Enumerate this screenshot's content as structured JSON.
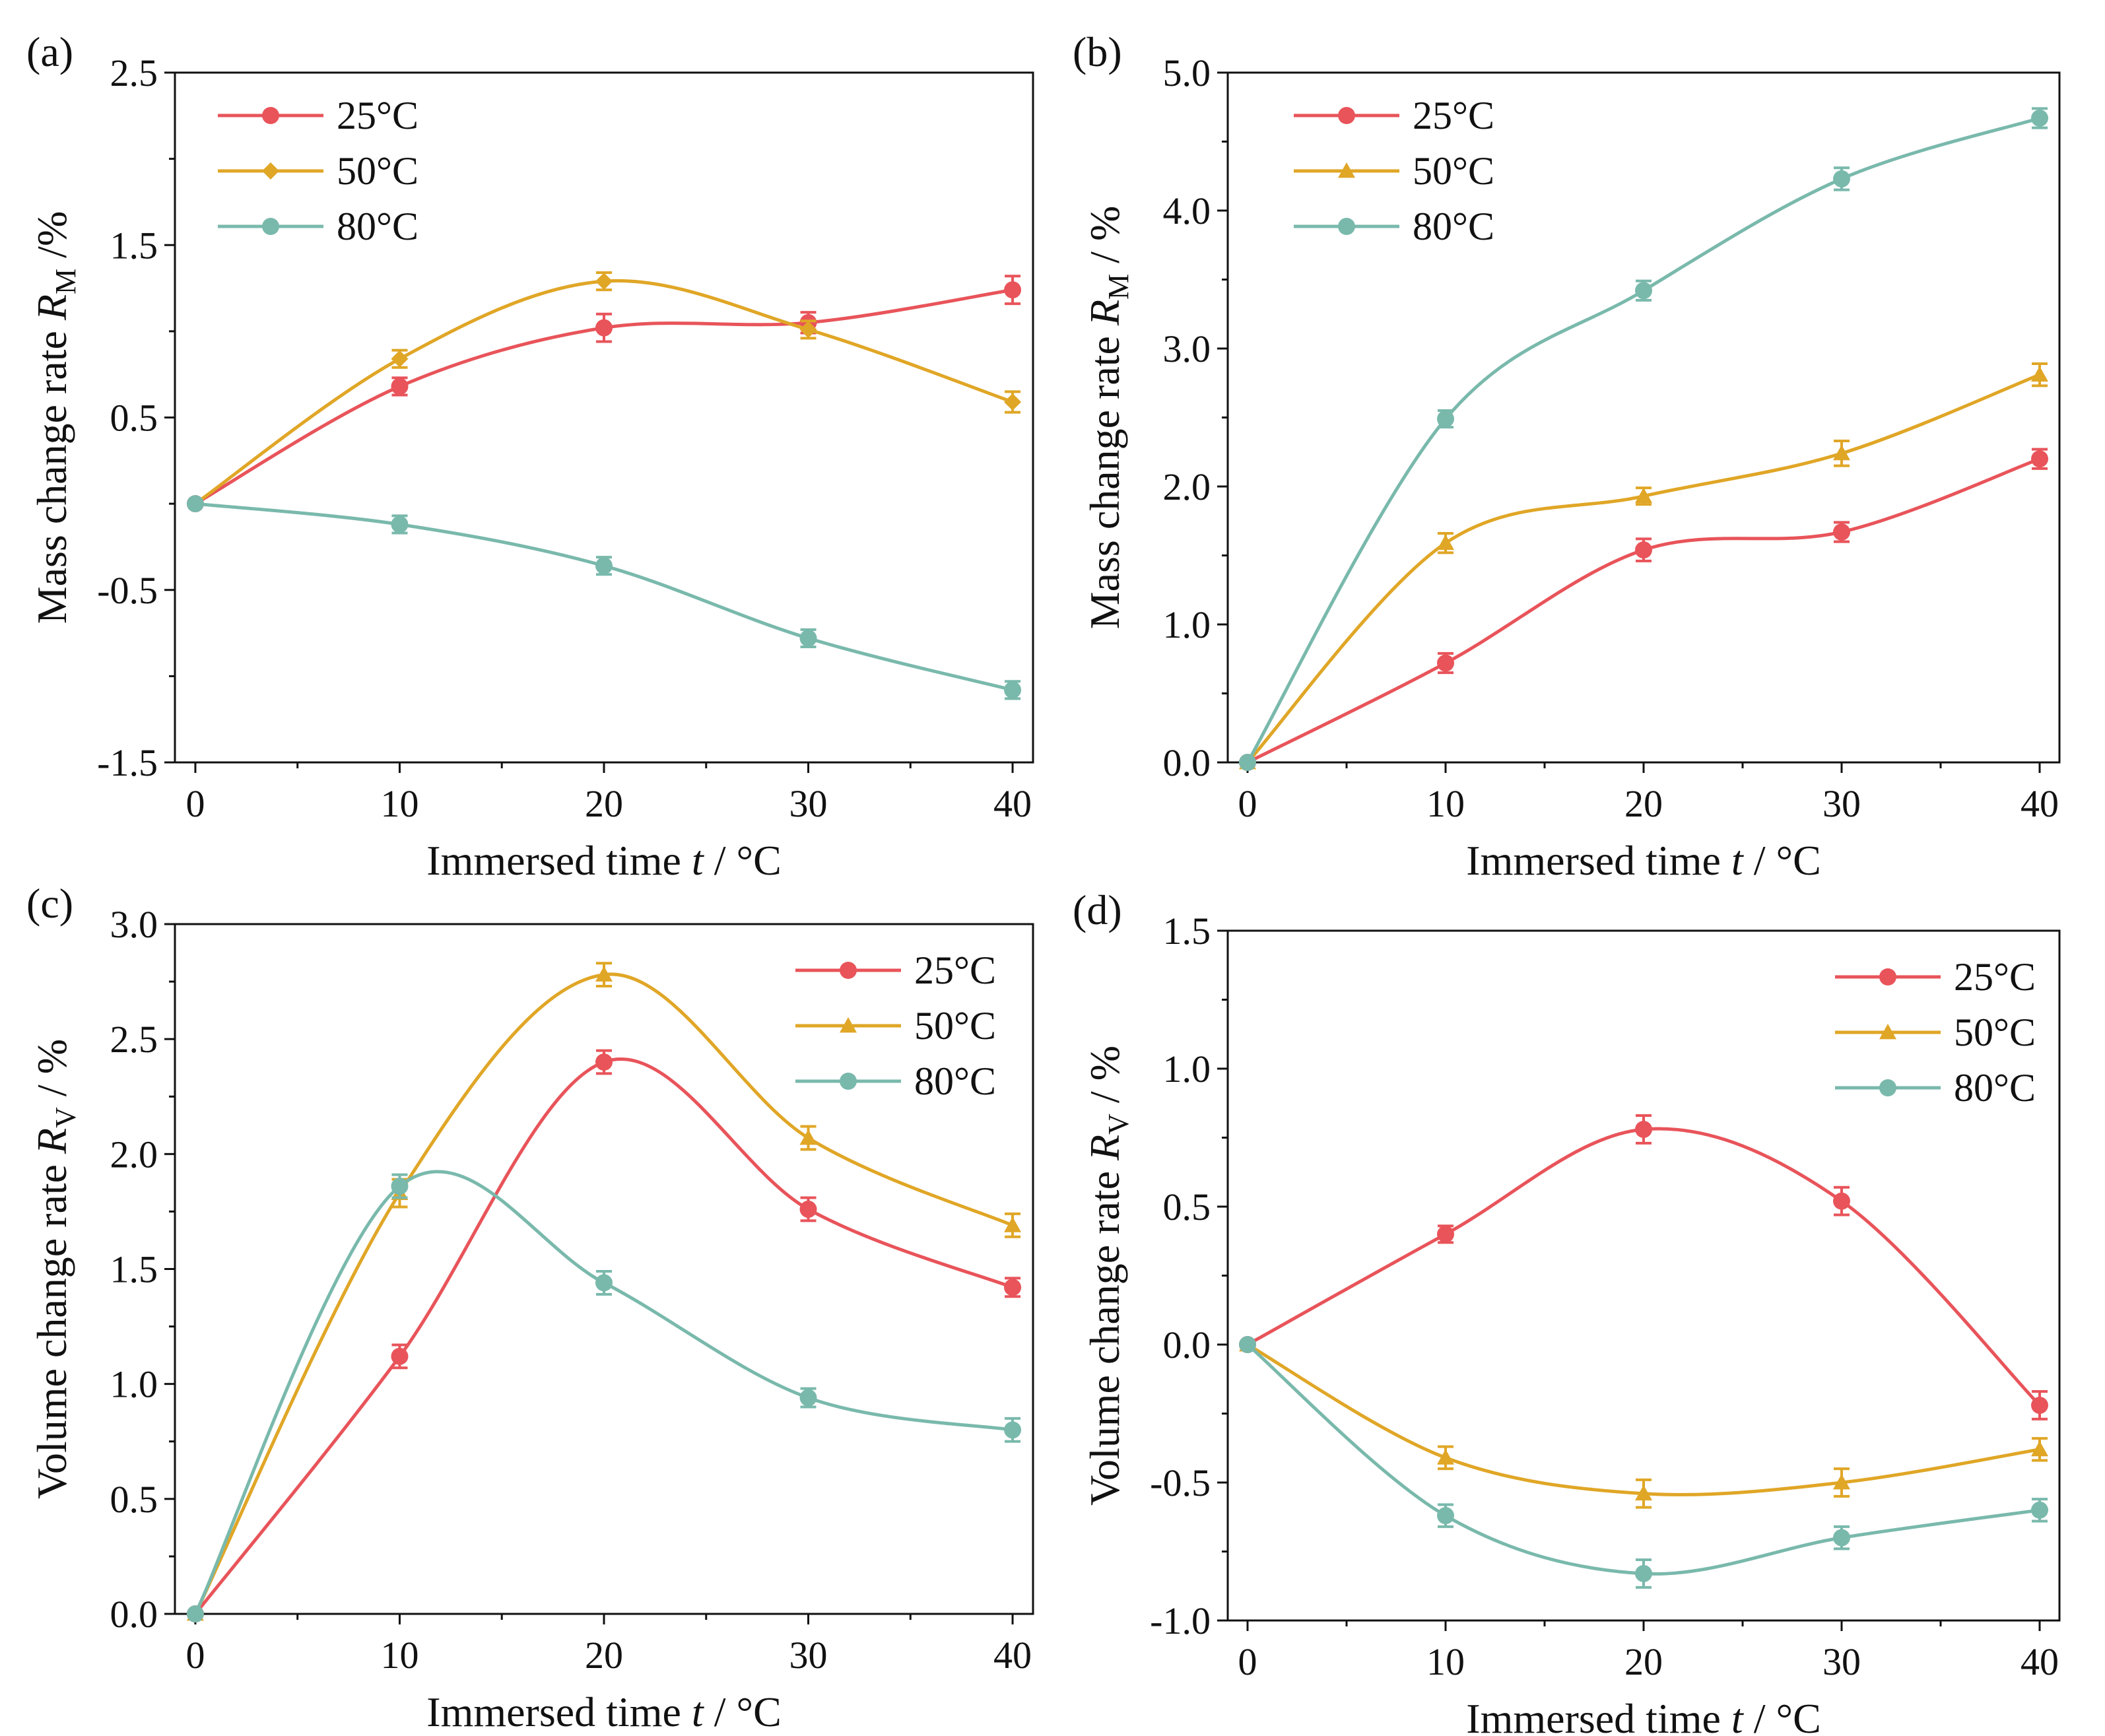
{
  "figure": {
    "panel_count": 4
  },
  "chart_data": [
    {
      "panel": "(a)",
      "type": "line",
      "x": [
        0,
        10,
        20,
        30,
        40
      ],
      "xlim": [
        -1,
        41
      ],
      "xticks": [
        "0",
        "10",
        "20",
        "30",
        "40"
      ],
      "ylim": [
        -1.5,
        2.5
      ],
      "yticks": [
        "-1.5",
        "-0.5",
        "0.5",
        "1.5",
        "2.5"
      ],
      "ytick_values": [
        -1.5,
        -0.5,
        0.5,
        1.5,
        2.5
      ],
      "xlabel": "Immersed time",
      "xlabel_var": "t",
      "xlabel_unit": " / °C",
      "ylabel": "Mass change rate",
      "ylabel_var": "R",
      "ylabel_sub": "M",
      "ylabel_unit": " /%",
      "legend_position": "top-left",
      "series": [
        {
          "name": "25°C",
          "marker": "circle",
          "color": "#e8545a",
          "values": [
            0,
            0.68,
            1.02,
            1.05,
            1.24
          ],
          "errors": [
            0,
            0.05,
            0.08,
            0.06,
            0.08
          ]
        },
        {
          "name": "50°C",
          "marker": "diamond",
          "color": "#e0a626",
          "values": [
            0,
            0.84,
            1.29,
            1.01,
            0.59
          ],
          "errors": [
            0,
            0.05,
            0.05,
            0.05,
            0.06
          ]
        },
        {
          "name": "80°C",
          "marker": "circle",
          "color": "#79b9ac",
          "values": [
            0,
            -0.12,
            -0.36,
            -0.78,
            -1.08
          ],
          "errors": [
            0,
            0.05,
            0.05,
            0.05,
            0.05
          ]
        }
      ]
    },
    {
      "panel": "(b)",
      "type": "line",
      "x": [
        0,
        10,
        20,
        30,
        40
      ],
      "xlim": [
        -1,
        41
      ],
      "xticks": [
        "0",
        "10",
        "20",
        "30",
        "40"
      ],
      "ylim": [
        0,
        5
      ],
      "yticks": [
        "0.0",
        "1.0",
        "2.0",
        "3.0",
        "4.0",
        "5.0"
      ],
      "ytick_values": [
        0,
        1,
        2,
        3,
        4,
        5
      ],
      "xlabel": "Immersed time",
      "xlabel_var": "t",
      "xlabel_unit": " / °C",
      "ylabel": "Mass change rate",
      "ylabel_var": "R",
      "ylabel_sub": "M",
      "ylabel_unit": " / %",
      "legend_position": "top-left",
      "series": [
        {
          "name": "25°C",
          "marker": "circle",
          "color": "#e8545a",
          "values": [
            0,
            0.72,
            1.54,
            1.67,
            2.2
          ],
          "errors": [
            0,
            0.07,
            0.08,
            0.07,
            0.07
          ]
        },
        {
          "name": "50°C",
          "marker": "triangle",
          "color": "#e0a626",
          "values": [
            0,
            1.59,
            1.93,
            2.24,
            2.81
          ],
          "errors": [
            0,
            0.07,
            0.06,
            0.09,
            0.08
          ]
        },
        {
          "name": "80°C",
          "marker": "circle",
          "color": "#79b9ac",
          "values": [
            0,
            2.49,
            3.42,
            4.23,
            4.67
          ],
          "errors": [
            0,
            0.06,
            0.07,
            0.08,
            0.07
          ]
        }
      ]
    },
    {
      "panel": "(c)",
      "type": "line",
      "x": [
        0,
        10,
        20,
        30,
        40
      ],
      "xlim": [
        -1,
        41
      ],
      "xticks": [
        "0",
        "10",
        "20",
        "30",
        "40"
      ],
      "ylim": [
        0,
        3
      ],
      "yticks": [
        "0.0",
        "0.5",
        "1.0",
        "1.5",
        "2.0",
        "2.5",
        "3.0"
      ],
      "ytick_values": [
        0,
        0.5,
        1,
        1.5,
        2,
        2.5,
        3
      ],
      "xlabel": "Immersed time",
      "xlabel_var": "t",
      "xlabel_unit": " / °C",
      "ylabel": "Volume change rate",
      "ylabel_var": "R",
      "ylabel_sub": "V",
      "ylabel_unit": " / %",
      "legend_position": "top-right",
      "series": [
        {
          "name": "25°C",
          "marker": "circle",
          "color": "#e8545a",
          "values": [
            0,
            1.12,
            2.4,
            1.76,
            1.42
          ],
          "errors": [
            0,
            0.05,
            0.05,
            0.05,
            0.04
          ]
        },
        {
          "name": "50°C",
          "marker": "triangle",
          "color": "#e0a626",
          "values": [
            0,
            1.83,
            2.78,
            2.07,
            1.69
          ],
          "errors": [
            0,
            0.06,
            0.05,
            0.05,
            0.05
          ]
        },
        {
          "name": "80°C",
          "marker": "circle",
          "color": "#79b9ac",
          "values": [
            0,
            1.86,
            1.44,
            0.94,
            0.8
          ],
          "errors": [
            0,
            0.05,
            0.05,
            0.04,
            0.05
          ]
        }
      ]
    },
    {
      "panel": "(d)",
      "type": "line",
      "x": [
        0,
        10,
        20,
        30,
        40
      ],
      "xlim": [
        -1,
        41
      ],
      "xticks": [
        "0",
        "10",
        "20",
        "30",
        "40"
      ],
      "ylim": [
        -1,
        1.5
      ],
      "yticks": [
        "-1.0",
        "-0.5",
        "0.0",
        "0.5",
        "1.0",
        "1.5"
      ],
      "ytick_values": [
        -1,
        -0.5,
        0,
        0.5,
        1,
        1.5
      ],
      "xlabel": "Immersed time",
      "xlabel_var": "t",
      "xlabel_unit": " / °C",
      "ylabel": "Volume change rate",
      "ylabel_var": "R",
      "ylabel_sub": "V",
      "ylabel_unit": " / %",
      "legend_position": "top-right",
      "series": [
        {
          "name": "25°C",
          "marker": "circle",
          "color": "#e8545a",
          "values": [
            0,
            0.4,
            0.78,
            0.52,
            -0.22
          ],
          "errors": [
            0,
            0.03,
            0.05,
            0.05,
            0.05
          ]
        },
        {
          "name": "50°C",
          "marker": "triangle",
          "color": "#e0a626",
          "values": [
            0,
            -0.41,
            -0.54,
            -0.5,
            -0.38
          ],
          "errors": [
            0,
            0.04,
            0.05,
            0.05,
            0.04
          ]
        },
        {
          "name": "80°C",
          "marker": "circle",
          "color": "#79b9ac",
          "values": [
            0,
            -0.62,
            -0.83,
            -0.7,
            -0.6
          ],
          "errors": [
            0,
            0.04,
            0.05,
            0.04,
            0.04
          ]
        }
      ]
    }
  ]
}
